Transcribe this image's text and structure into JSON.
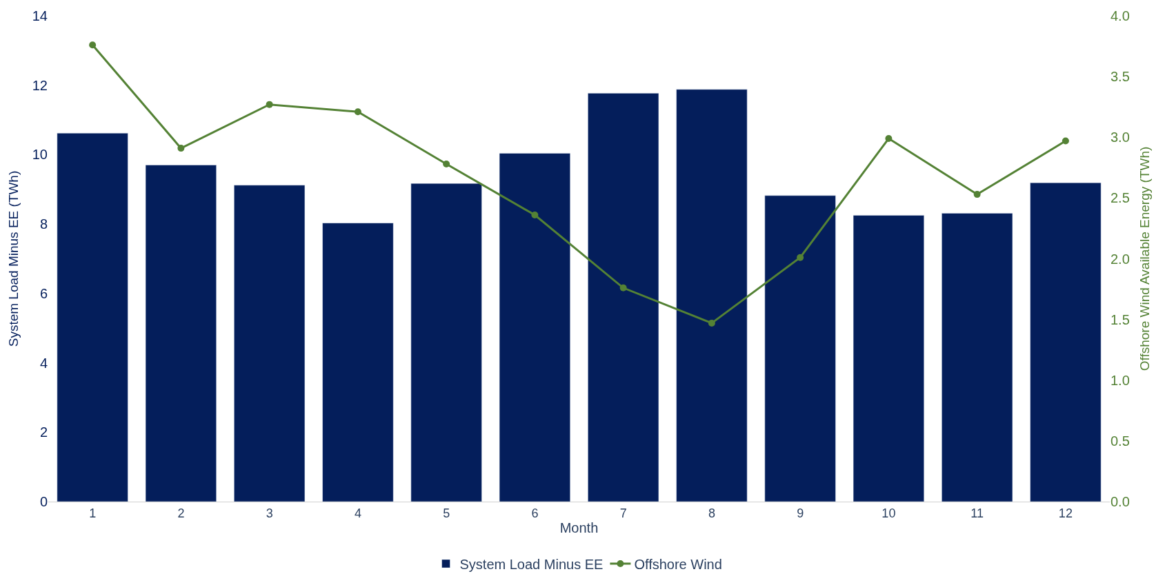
{
  "chart_data": {
    "type": "bar",
    "xlabel": "Month",
    "ylabel": "System Load Minus EE (TWh)",
    "y2label": "Offshore Wind Available Energy (TWh)",
    "categories": [
      "1",
      "2",
      "3",
      "4",
      "5",
      "6",
      "7",
      "8",
      "9",
      "10",
      "11",
      "12"
    ],
    "series": [
      {
        "name": "System Load Minus EE",
        "color": "#041e5b",
        "values": [
          10.62,
          9.7,
          9.12,
          8.03,
          9.17,
          10.04,
          11.77,
          11.88,
          8.82,
          8.25,
          8.31,
          9.19
        ]
      },
      {
        "name": "Offshore Wind",
        "type": "line",
        "axis": "y2",
        "color": "#548235",
        "marker": "circle",
        "values": [
          3.76,
          2.91,
          3.27,
          3.21,
          2.78,
          2.36,
          1.76,
          1.47,
          2.01,
          2.99,
          2.53,
          2.97
        ]
      }
    ],
    "ylim": [
      0,
      14
    ],
    "yticks": [
      0,
      2,
      4,
      6,
      8,
      10,
      12,
      14
    ],
    "y2lim": [
      0,
      4
    ],
    "y2ticks": [
      {
        "value": 0,
        "label": "0.0"
      },
      {
        "value": 0.5,
        "label": "0.5"
      },
      {
        "value": 1,
        "label": "1.0"
      },
      {
        "value": 1.5,
        "label": "1.5"
      },
      {
        "value": 2,
        "label": "2.0"
      },
      {
        "value": 2.5,
        "label": "2.5"
      },
      {
        "value": 3,
        "label": "3.0"
      },
      {
        "value": 3.5,
        "label": "3.5"
      },
      {
        "value": 4,
        "label": "4.0"
      }
    ],
    "legend": "bottom"
  }
}
